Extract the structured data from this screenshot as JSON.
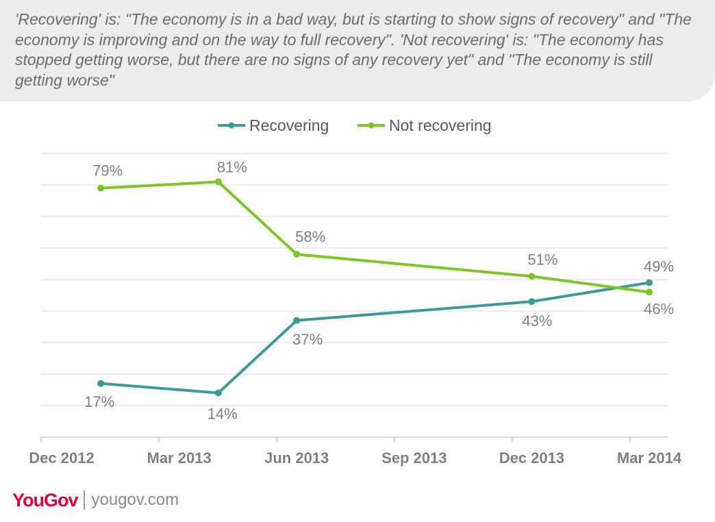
{
  "note": "'Recovering' is: \"The economy is in a bad way, but is starting to show signs of recovery\" and \"The economy is improving and on the way to full recovery\". 'Not recovering' is: \"The economy has stopped getting worse, but there are no signs of any recovery yet\" and \"The economy is still getting worse\"",
  "footer": {
    "logo": "YouGov",
    "site": "yougov.com"
  },
  "colors": {
    "recovering": "#3b9a9c",
    "not_recovering": "#7ec623"
  },
  "chart_data": {
    "type": "line",
    "x": [
      "Dec 2012",
      "Mar 2013",
      "Jun 2013",
      "Sep 2013",
      "Dec 2013",
      "Mar 2014"
    ],
    "x_label_dates": [
      "Dec 2012",
      "Mar 2013",
      "Jun 2013",
      "Sep 2013",
      "Dec 2013",
      "Mar 2014"
    ],
    "legend": {
      "placement": "top-center"
    },
    "grid": true,
    "ylim": [
      0,
      90
    ],
    "series": [
      {
        "name": "Recovering",
        "points": [
          {
            "date": "Jan 2013",
            "value": 17,
            "label": "17%"
          },
          {
            "date": "Apr 2013",
            "value": 14,
            "label": "14%"
          },
          {
            "date": "Jun 2013",
            "value": 37,
            "label": "37%"
          },
          {
            "date": "Dec 2013",
            "value": 43,
            "label": "43%"
          },
          {
            "date": "Mar 2014",
            "value": 49,
            "label": "49%"
          }
        ]
      },
      {
        "name": "Not recovering",
        "points": [
          {
            "date": "Jan 2013",
            "value": 79,
            "label": "79%"
          },
          {
            "date": "Apr 2013",
            "value": 81,
            "label": "81%"
          },
          {
            "date": "Jun 2013",
            "value": 58,
            "label": "58%"
          },
          {
            "date": "Dec 2013",
            "value": 51,
            "label": "51%"
          },
          {
            "date": "Mar 2014",
            "value": 46,
            "label": "46%"
          }
        ]
      }
    ]
  }
}
